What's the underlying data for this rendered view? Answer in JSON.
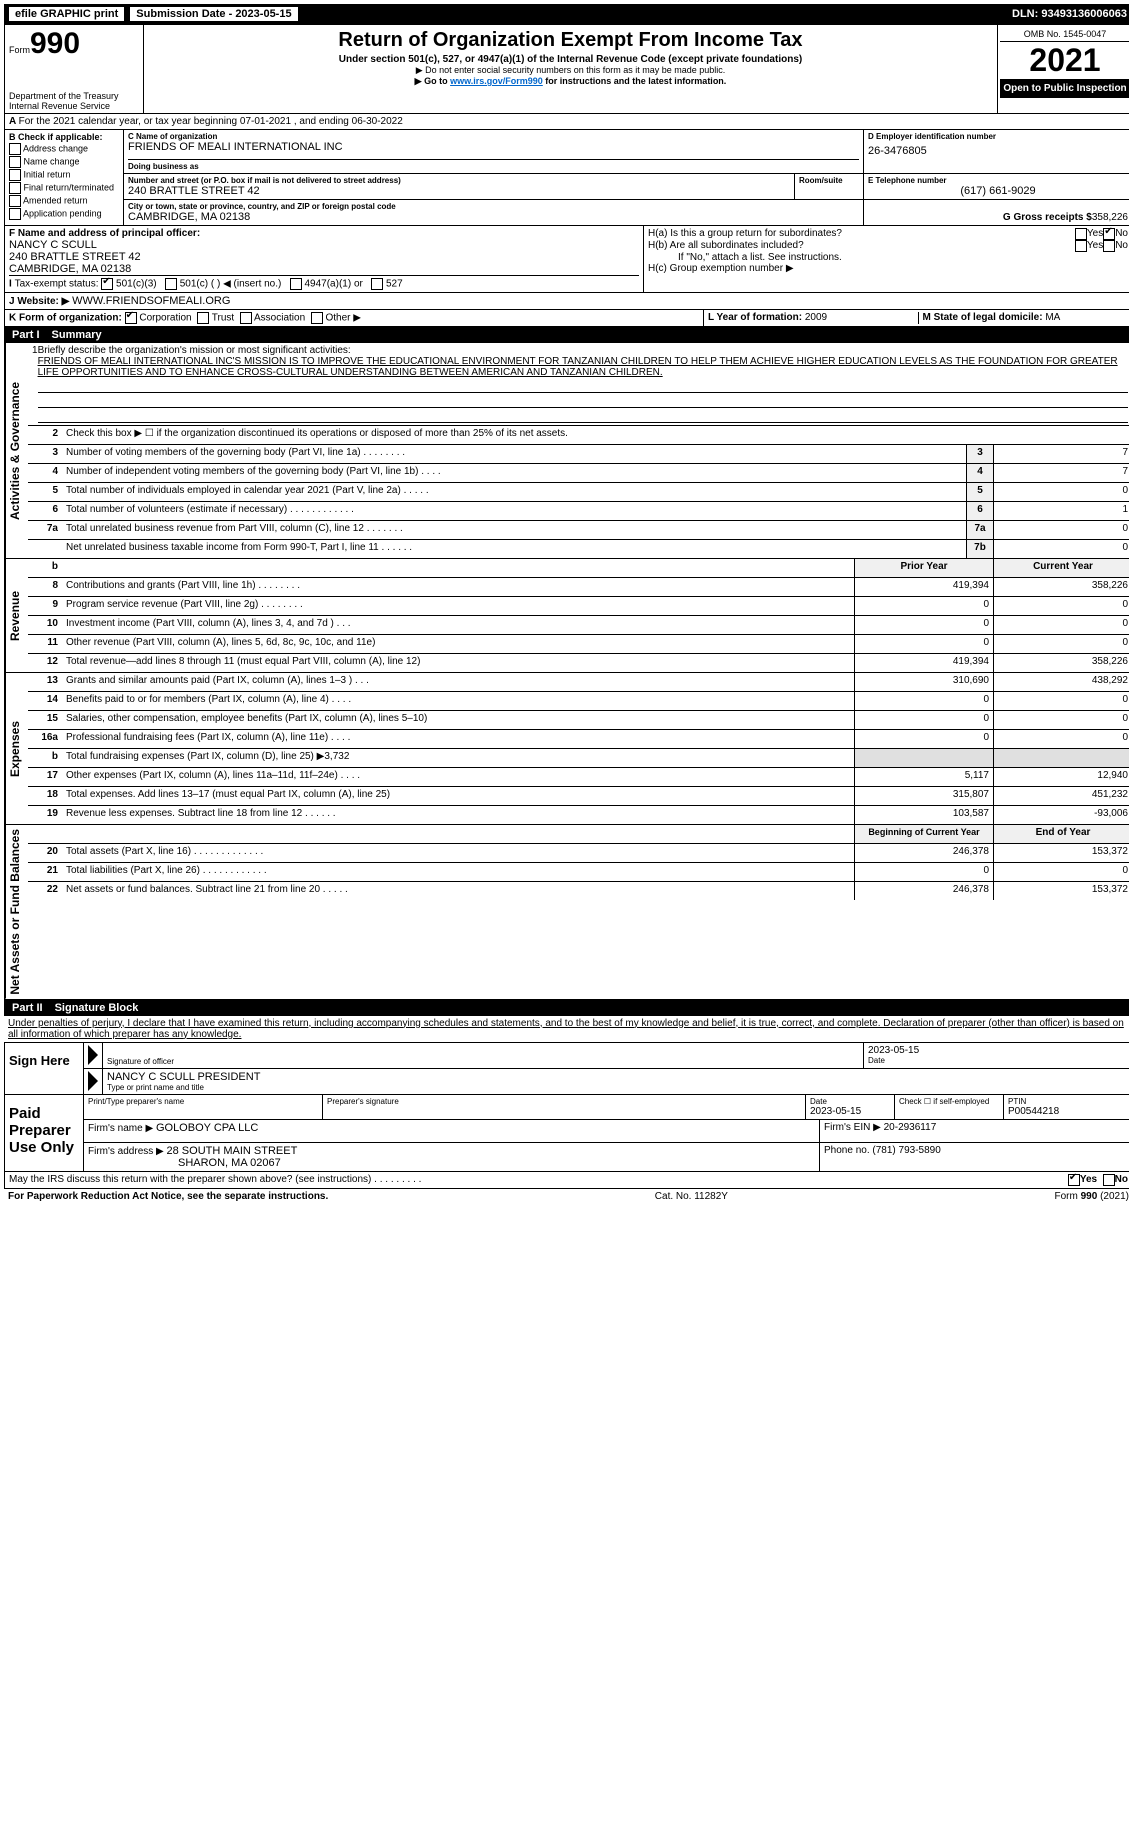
{
  "topbar": {
    "efile": "efile GRAPHIC print",
    "submission_label": "Submission Date - 2023-05-15",
    "dln": "DLN: 93493136006063"
  },
  "header": {
    "form_word": "Form",
    "form_num": "990",
    "dept": "Department of the Treasury",
    "irs": "Internal Revenue Service",
    "title": "Return of Organization Exempt From Income Tax",
    "subtitle": "Under section 501(c), 527, or 4947(a)(1) of the Internal Revenue Code (except private foundations)",
    "note1": "▶ Do not enter social security numbers on this form as it may be made public.",
    "note2_pre": "▶ Go to ",
    "note2_link": "www.irs.gov/Form990",
    "note2_post": " for instructions and the latest information.",
    "omb": "OMB No. 1545-0047",
    "year": "2021",
    "open": "Open to Public Inspection"
  },
  "row_a": "For the 2021 calendar year, or tax year beginning 07-01-2021    , and ending 06-30-2022",
  "section_b": {
    "label": "B Check if applicable:",
    "items": [
      "Address change",
      "Name change",
      "Initial return",
      "Final return/terminated",
      "Amended return",
      "Application pending"
    ]
  },
  "section_c": {
    "name_lbl": "C Name of organization",
    "name": "FRIENDS OF MEALI INTERNATIONAL INC",
    "dba_lbl": "Doing business as",
    "dba": "",
    "addr_lbl": "Number and street (or P.O. box if mail is not delivered to street address)",
    "room_lbl": "Room/suite",
    "addr": "240 BRATTLE STREET 42",
    "city_lbl": "City or town, state or province, country, and ZIP or foreign postal code",
    "city": "CAMBRIDGE, MA  02138"
  },
  "section_d": {
    "ein_lbl": "D Employer identification number",
    "ein": "26-3476805",
    "phone_lbl": "E Telephone number",
    "phone": "(617) 661-9029",
    "gross_lbl": "G Gross receipts $",
    "gross": "358,226"
  },
  "section_f": {
    "lbl": "F Name and address of principal officer:",
    "name": "NANCY C SCULL",
    "addr": "240 BRATTLE STREET 42",
    "city": "CAMBRIDGE, MA  02138"
  },
  "section_h": {
    "ha": "H(a)  Is this a group return for subordinates?",
    "hb": "H(b)  Are all subordinates included?",
    "hb_note": "If \"No,\" attach a list. See instructions.",
    "hc": "H(c)  Group exemption number ▶",
    "yes": "Yes",
    "no": "No"
  },
  "section_i": {
    "lbl": "Tax-exempt status:",
    "o1": "501(c)(3)",
    "o2": "501(c) (   ) ◀ (insert no.)",
    "o3": "4947(a)(1) or",
    "o4": "527"
  },
  "section_j": {
    "lbl": "Website: ▶",
    "val": "WWW.FRIENDSOFMEALI.ORG"
  },
  "section_k": {
    "lbl": "K Form of organization:",
    "o1": "Corporation",
    "o2": "Trust",
    "o3": "Association",
    "o4": "Other ▶"
  },
  "section_l": {
    "lbl": "L Year of formation:",
    "val": "2009"
  },
  "section_m": {
    "lbl": "M State of legal domicile:",
    "val": "MA"
  },
  "part1": {
    "num": "Part I",
    "title": "Summary"
  },
  "mission": {
    "num": "1",
    "lbl": "Briefly describe the organization's mission or most significant activities:",
    "text": "FRIENDS OF MEALI INTERNATIONAL INC'S MISSION IS TO IMPROVE THE EDUCATIONAL ENVIRONMENT FOR TANZANIAN CHILDREN TO HELP THEM ACHIEVE HIGHER EDUCATION LEVELS AS THE FOUNDATION FOR GREATER LIFE OPPORTUNITIES AND TO ENHANCE CROSS-CULTURAL UNDERSTANDING BETWEEN AMERICAN AND TANZANIAN CHILDREN."
  },
  "gov_lines": [
    {
      "n": "2",
      "d": "Check this box ▶ ☐ if the organization discontinued its operations or disposed of more than 25% of its net assets."
    },
    {
      "n": "3",
      "d": "Number of voting members of the governing body (Part VI, line 1a)   .    .    .    .    .    .    .    .",
      "b": "3",
      "v": "7"
    },
    {
      "n": "4",
      "d": "Number of independent voting members of the governing body (Part VI, line 1b)   .    .    .    .",
      "b": "4",
      "v": "7"
    },
    {
      "n": "5",
      "d": "Total number of individuals employed in calendar year 2021 (Part V, line 2a)   .    .    .    .    .",
      "b": "5",
      "v": "0"
    },
    {
      "n": "6",
      "d": "Total number of volunteers (estimate if necessary)   .    .    .    .    .    .    .    .    .    .    .    .",
      "b": "6",
      "v": "1"
    },
    {
      "n": "7a",
      "d": "Total unrelated business revenue from Part VIII, column (C), line 12   .    .    .    .    .    .    .",
      "b": "7a",
      "v": "0"
    },
    {
      "n": "",
      "d": "Net unrelated business taxable income from Form 990-T, Part I, line 11   .    .    .    .    .    .",
      "b": "7b",
      "v": "0"
    }
  ],
  "two_col_hdr": {
    "py": "Prior Year",
    "cy": "Current Year"
  },
  "revenue_lines": [
    {
      "n": "8",
      "d": "Contributions and grants (Part VIII, line 1h)   .    .    .    .    .    .    .    .",
      "py": "419,394",
      "cy": "358,226"
    },
    {
      "n": "9",
      "d": "Program service revenue (Part VIII, line 2g)   .    .    .    .    .    .    .    .",
      "py": "0",
      "cy": "0"
    },
    {
      "n": "10",
      "d": "Investment income (Part VIII, column (A), lines 3, 4, and 7d )   .    .    .",
      "py": "0",
      "cy": "0"
    },
    {
      "n": "11",
      "d": "Other revenue (Part VIII, column (A), lines 5, 6d, 8c, 9c, 10c, and 11e)",
      "py": "0",
      "cy": "0"
    },
    {
      "n": "12",
      "d": "Total revenue—add lines 8 through 11 (must equal Part VIII, column (A), line 12)",
      "py": "419,394",
      "cy": "358,226"
    }
  ],
  "expense_lines": [
    {
      "n": "13",
      "d": "Grants and similar amounts paid (Part IX, column (A), lines 1–3 )   .    .    .",
      "py": "310,690",
      "cy": "438,292"
    },
    {
      "n": "14",
      "d": "Benefits paid to or for members (Part IX, column (A), line 4)   .    .    .    .",
      "py": "0",
      "cy": "0"
    },
    {
      "n": "15",
      "d": "Salaries, other compensation, employee benefits (Part IX, column (A), lines 5–10)",
      "py": "0",
      "cy": "0"
    },
    {
      "n": "16a",
      "d": "Professional fundraising fees (Part IX, column (A), line 11e)   .    .    .    .",
      "py": "0",
      "cy": "0"
    },
    {
      "n": "b",
      "d": "Total fundraising expenses (Part IX, column (D), line 25) ▶3,732",
      "py": "__shade__",
      "cy": "__shade__"
    },
    {
      "n": "17",
      "d": "Other expenses (Part IX, column (A), lines 11a–11d, 11f–24e)   .    .    .    .",
      "py": "5,117",
      "cy": "12,940"
    },
    {
      "n": "18",
      "d": "Total expenses. Add lines 13–17 (must equal Part IX, column (A), line 25)",
      "py": "315,807",
      "cy": "451,232"
    },
    {
      "n": "19",
      "d": "Revenue less expenses. Subtract line 18 from line 12   .    .    .    .    .    .",
      "py": "103,587",
      "cy": "-93,006"
    }
  ],
  "na_hdr": {
    "py": "Beginning of Current Year",
    "cy": "End of Year"
  },
  "na_lines": [
    {
      "n": "20",
      "d": "Total assets (Part X, line 16)   .    .    .    .    .    .    .    .    .    .    .    .    .",
      "py": "246,378",
      "cy": "153,372"
    },
    {
      "n": "21",
      "d": "Total liabilities (Part X, line 26)   .    .    .    .    .    .    .    .    .    .    .    .",
      "py": "0",
      "cy": "0"
    },
    {
      "n": "22",
      "d": "Net assets or fund balances. Subtract line 21 from line 20   .    .    .    .    .",
      "py": "246,378",
      "cy": "153,372"
    }
  ],
  "vtabs": {
    "gov": "Activities & Governance",
    "rev": "Revenue",
    "exp": "Expenses",
    "na": "Net Assets or Fund Balances"
  },
  "part2": {
    "num": "Part II",
    "title": "Signature Block"
  },
  "penalties": "Under penalties of perjury, I declare that I have examined this return, including accompanying schedules and statements, and to the best of my knowledge and belief, it is true, correct, and complete. Declaration of preparer (other than officer) is based on all information of which preparer has any knowledge.",
  "sign": {
    "left": "Sign Here",
    "sig_lbl": "Signature of officer",
    "date_lbl": "Date",
    "date": "2023-05-15",
    "name": "NANCY C SCULL  PRESIDENT",
    "name_lbl": "Type or print name and title"
  },
  "paid": {
    "left": "Paid Preparer Use Only",
    "r1": {
      "c1_lbl": "Print/Type preparer's name",
      "c1": "",
      "c2_lbl": "Preparer's signature",
      "c3_lbl": "Date",
      "c3": "2023-05-15",
      "c4_lbl": "Check ☐ if self-employed",
      "c5_lbl": "PTIN",
      "c5": "P00544218"
    },
    "r2": {
      "lbl": "Firm's name    ▶",
      "val": "GOLOBOY CPA LLC",
      "ein_lbl": "Firm's EIN ▶",
      "ein": "20-2936117"
    },
    "r3": {
      "lbl": "Firm's address ▶",
      "val": "28 SOUTH MAIN STREET",
      "val2": "SHARON, MA  02067",
      "ph_lbl": "Phone no.",
      "ph": "(781) 793-5890"
    }
  },
  "discuss": {
    "q": "May the IRS discuss this return with the preparer shown above? (see instructions)    .    .    .    .    .    .    .    .    .",
    "yes": "Yes",
    "no": "No"
  },
  "footer": {
    "l": "For Paperwork Reduction Act Notice, see the separate instructions.",
    "c": "Cat. No. 11282Y",
    "r_pre": "Form ",
    "r_b": "990",
    "r_post": " (2021)"
  }
}
